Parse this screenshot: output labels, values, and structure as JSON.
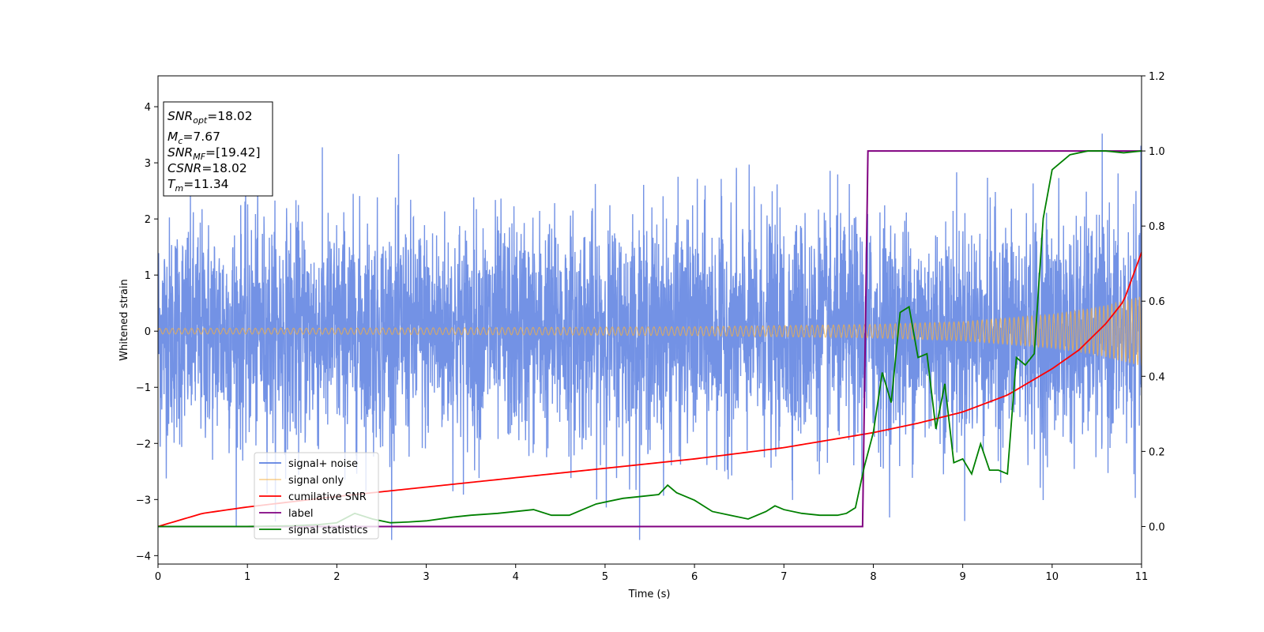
{
  "chart_data": {
    "type": "line",
    "xlabel": "Time (s)",
    "ylabel": "Whitened strain",
    "xlim": [
      0,
      11
    ],
    "ylim_left": [
      -4.15,
      4.55
    ],
    "ylim_right": [
      -0.1,
      1.2
    ],
    "x_ticks": [
      "0",
      "1",
      "2",
      "3",
      "4",
      "5",
      "6",
      "7",
      "8",
      "9",
      "10",
      "11"
    ],
    "y_left_ticks": [
      "−4",
      "−3",
      "−2",
      "−1",
      "0",
      "1",
      "2",
      "3",
      "4"
    ],
    "y_right_ticks": [
      "0.0",
      "0.2",
      "0.4",
      "0.6",
      "0.8",
      "1.0",
      "1.2"
    ],
    "grid": false,
    "legend_position": "lower-left",
    "info_box": {
      "lines": [
        {
          "var": "SNR",
          "sub": "opt",
          "value": "=18.02"
        },
        {
          "var": "M",
          "sub": "c",
          "value": "=7.67"
        },
        {
          "var": "SNR",
          "sub": "MF",
          "value": "=[19.42]"
        },
        {
          "var": "CSNR",
          "sub": "",
          "value": "=18.02"
        },
        {
          "var": "T",
          "sub": "m",
          "value": "=11.34"
        }
      ]
    },
    "series": [
      {
        "name": "signal+ noise",
        "axis": "left",
        "color": "#5b7fe0",
        "description_level": "noise_std",
        "noise_std": 1.0,
        "peak_max": 3.52,
        "peak_min": -3.72
      },
      {
        "name": "signal only",
        "axis": "left",
        "color": "#f5b041",
        "envelope": {
          "x": [
            0,
            2,
            4,
            6,
            8,
            9,
            10,
            10.5,
            11
          ],
          "y": [
            0.05,
            0.055,
            0.065,
            0.08,
            0.12,
            0.17,
            0.3,
            0.42,
            0.62
          ]
        }
      },
      {
        "name": "cumilative SNR",
        "axis": "right",
        "color": "#ff0000",
        "x": [
          0,
          0.5,
          1,
          2,
          3,
          4,
          5,
          6,
          7,
          8,
          8.5,
          9,
          9.5,
          10,
          10.3,
          10.6,
          10.8,
          11
        ],
        "y": [
          0.0,
          0.035,
          0.052,
          0.08,
          0.105,
          0.13,
          0.155,
          0.18,
          0.21,
          0.25,
          0.275,
          0.305,
          0.35,
          0.42,
          0.47,
          0.54,
          0.6,
          0.73
        ]
      },
      {
        "name": "label",
        "axis": "right",
        "color": "#800080",
        "x": [
          0,
          7.88,
          7.94,
          11
        ],
        "y": [
          0,
          0,
          1,
          1
        ]
      },
      {
        "name": "signal statistics",
        "axis": "right",
        "color": "#008000",
        "x": [
          0,
          0.5,
          1,
          1.5,
          1.8,
          2.0,
          2.2,
          2.4,
          2.6,
          2.8,
          3.0,
          3.3,
          3.5,
          3.8,
          4.0,
          4.2,
          4.4,
          4.6,
          4.8,
          4.9,
          5.0,
          5.2,
          5.4,
          5.6,
          5.7,
          5.8,
          5.9,
          6.0,
          6.2,
          6.4,
          6.6,
          6.8,
          6.9,
          7.0,
          7.2,
          7.4,
          7.6,
          7.7,
          7.8,
          7.9,
          8.0,
          8.1,
          8.2,
          8.3,
          8.4,
          8.5,
          8.6,
          8.7,
          8.8,
          8.9,
          9.0,
          9.1,
          9.2,
          9.3,
          9.4,
          9.5,
          9.6,
          9.7,
          9.8,
          9.9,
          10.0,
          10.1,
          10.2,
          10.4,
          10.6,
          10.8,
          11.0
        ],
        "y": [
          0.0,
          0.0,
          0.0,
          0.002,
          0.005,
          0.01,
          0.035,
          0.02,
          0.01,
          0.012,
          0.015,
          0.025,
          0.03,
          0.035,
          0.04,
          0.045,
          0.03,
          0.03,
          0.05,
          0.06,
          0.065,
          0.075,
          0.08,
          0.085,
          0.11,
          0.09,
          0.08,
          0.07,
          0.04,
          0.03,
          0.02,
          0.04,
          0.055,
          0.045,
          0.035,
          0.03,
          0.03,
          0.035,
          0.05,
          0.16,
          0.25,
          0.41,
          0.33,
          0.57,
          0.585,
          0.45,
          0.46,
          0.26,
          0.38,
          0.17,
          0.18,
          0.14,
          0.22,
          0.15,
          0.15,
          0.14,
          0.45,
          0.43,
          0.46,
          0.82,
          0.95,
          0.97,
          0.99,
          1.0,
          1.0,
          0.995,
          1.0
        ]
      }
    ]
  }
}
